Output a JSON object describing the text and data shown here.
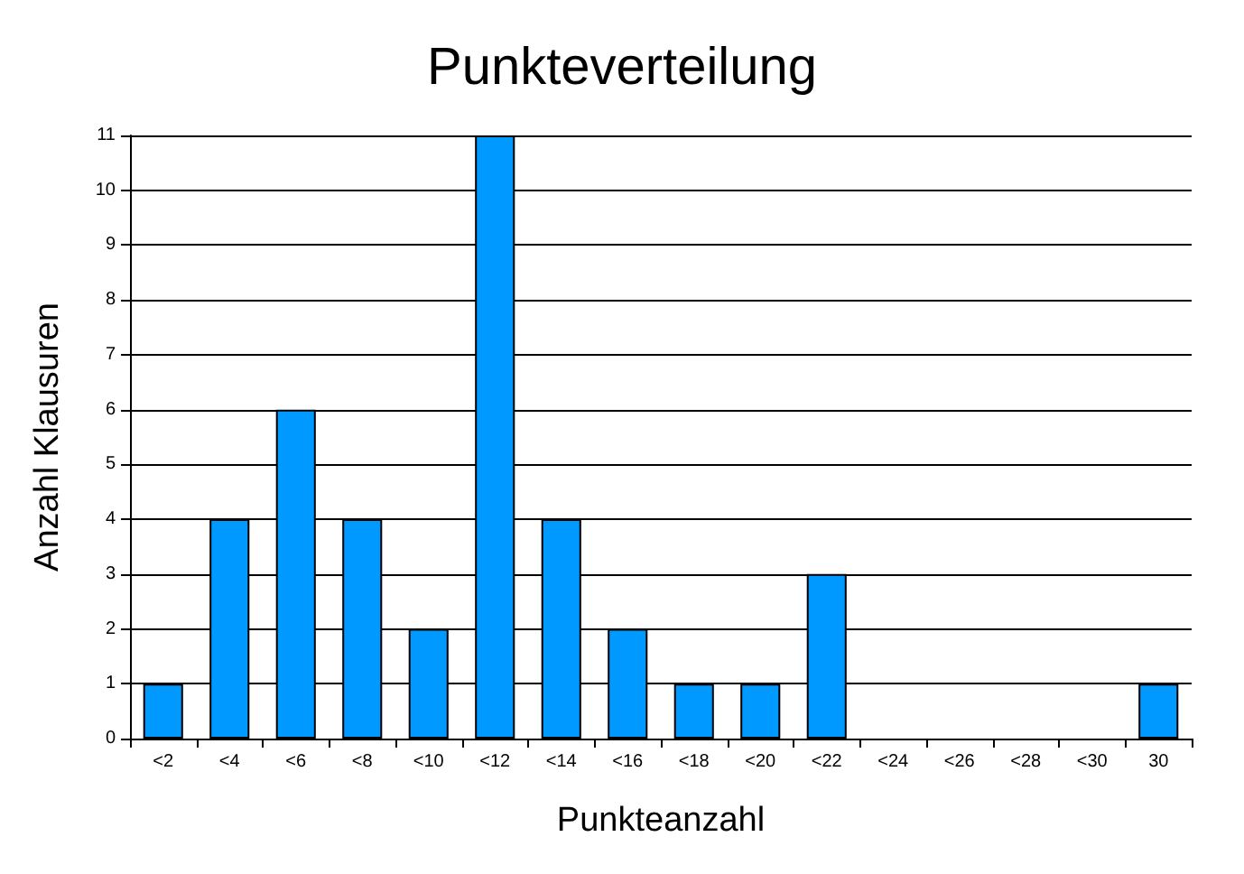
{
  "chart_data": {
    "type": "bar",
    "title": "Punkteverteilung",
    "xlabel": "Punkteanzahl",
    "ylabel": "Anzahl Klausuren",
    "categories": [
      "<2",
      "<4",
      "<6",
      "<8",
      "<10",
      "<12",
      "<14",
      "<16",
      "<18",
      "<20",
      "<22",
      "<24",
      "<26",
      "<28",
      "<30",
      "30"
    ],
    "values": [
      1,
      4,
      6,
      4,
      2,
      11,
      4,
      2,
      1,
      1,
      3,
      0,
      0,
      0,
      0,
      1
    ],
    "color": "#0099ff",
    "ylim": [
      0,
      11
    ],
    "yticks": [
      0,
      1,
      2,
      3,
      4,
      5,
      6,
      7,
      8,
      9,
      10,
      11
    ],
    "grid": "y"
  }
}
